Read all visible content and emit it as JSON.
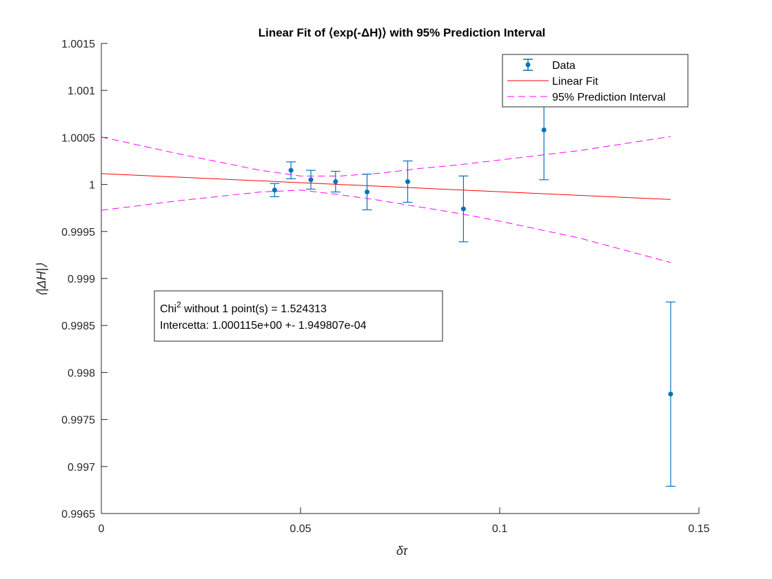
{
  "chart_data": {
    "type": "scatter",
    "title": "Linear Fit of ⟨exp(-ΔH)⟩ with 95% Prediction Interval",
    "xlabel": "δτ",
    "ylabel": "⟨|ΔH|⟩",
    "xlim": [
      0,
      0.15
    ],
    "ylim": [
      0.9965,
      1.0015
    ],
    "xticks": [
      0,
      0.05,
      0.1,
      0.15
    ],
    "xtick_labels": [
      "0",
      "0.05",
      "0.1",
      "0.15"
    ],
    "yticks": [
      0.9965,
      0.997,
      0.9975,
      0.998,
      0.9985,
      0.999,
      0.9995,
      1,
      1.0005,
      1.001,
      1.0015
    ],
    "ytick_labels": [
      "0.9965",
      "0.997",
      "0.9975",
      "0.998",
      "0.9985",
      "0.999",
      "0.9995",
      "1",
      "1.0005",
      "1.001",
      "1.0015"
    ],
    "grid": false,
    "legend_placement": "top-right",
    "colors": {
      "data": "#0072BD",
      "fit": "#FF0000",
      "prediction": "#FF00FF"
    },
    "series": [
      {
        "name": "Data",
        "kind": "errorbar",
        "points": [
          {
            "x": 0.0435,
            "y": 0.99994,
            "err": 7e-05
          },
          {
            "x": 0.0476,
            "y": 1.00015,
            "err": 9e-05
          },
          {
            "x": 0.0526,
            "y": 1.00005,
            "err": 0.0001
          },
          {
            "x": 0.0588,
            "y": 1.00003,
            "err": 0.00011
          },
          {
            "x": 0.0667,
            "y": 0.99992,
            "err": 0.00019
          },
          {
            "x": 0.0769,
            "y": 1.00003,
            "err": 0.00022
          },
          {
            "x": 0.0909,
            "y": 0.99974,
            "err": 0.00035
          },
          {
            "x": 0.1111,
            "y": 1.00058,
            "err": 0.00053
          },
          {
            "x": 0.1429,
            "y": 0.99777,
            "err": 0.00098
          }
        ]
      },
      {
        "name": "Linear Fit",
        "kind": "line",
        "x": [
          0,
          0.1429
        ],
        "y": [
          1.000115,
          0.99984
        ]
      },
      {
        "name": "95% Prediction Interval",
        "kind": "dashed",
        "x": [
          0,
          0.02,
          0.04,
          0.05,
          0.06,
          0.07,
          0.08,
          0.09,
          0.1,
          0.12,
          0.1429
        ],
        "upper": [
          1.000505,
          1.00032,
          1.00015,
          1.00009,
          1.00009,
          1.00012,
          1.00017,
          1.00021,
          1.00026,
          1.00036,
          1.00051
        ],
        "lower": [
          0.999725,
          0.99983,
          0.99992,
          0.99994,
          0.99989,
          0.99983,
          0.99976,
          0.99969,
          0.99961,
          0.99943,
          0.99917
        ]
      }
    ],
    "annotation": {
      "chi_prefix": "Chi",
      "chi_sup": "2",
      "chi_rest": " without 1 point(s) = 1.524313",
      "intercept": "Intercetta: 1.000115e+00 +- 1.949807e-04"
    }
  }
}
